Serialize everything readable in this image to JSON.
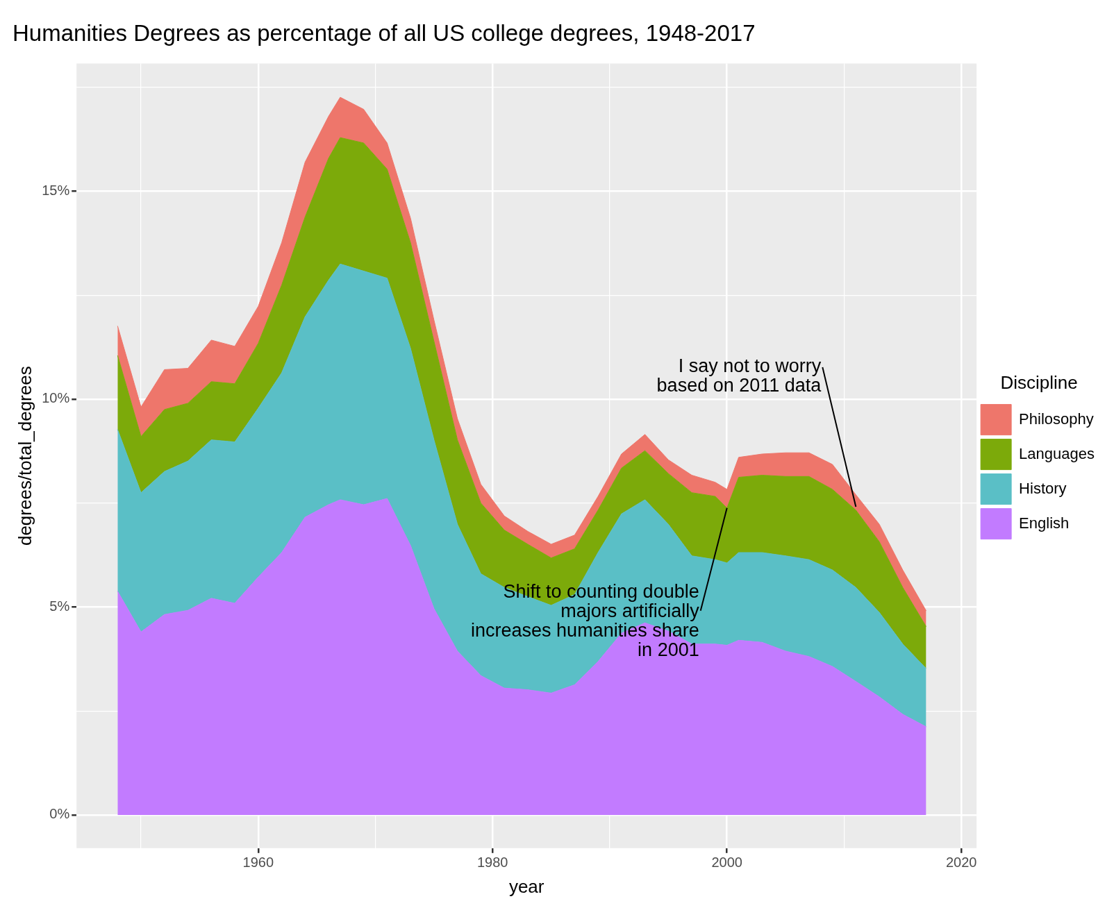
{
  "chart_data": {
    "type": "area",
    "title": "Humanities Degrees as percentage of all US college degrees, 1948-2017",
    "xlabel": "year",
    "ylabel": "degrees/total_degrees",
    "legend_title": "Discipline",
    "stacked": true,
    "grid": true,
    "legend": "right",
    "x": [
      1948,
      1950,
      1952,
      1954,
      1956,
      1958,
      1960,
      1962,
      1964,
      1966,
      1967,
      1969,
      1971,
      1973,
      1975,
      1977,
      1979,
      1981,
      1983,
      1985,
      1987,
      1989,
      1991,
      1993,
      1995,
      1997,
      1999,
      2000,
      2001,
      2003,
      2005,
      2007,
      2009,
      2011,
      2013,
      2015,
      2017
    ],
    "series": [
      {
        "name": "English",
        "color": "#c27bff",
        "values": [
          5.38,
          4.4,
          4.82,
          4.92,
          5.21,
          5.09,
          5.72,
          6.31,
          7.16,
          7.46,
          7.58,
          7.46,
          7.61,
          6.48,
          4.96,
          3.94,
          3.35,
          3.05,
          3.01,
          2.93,
          3.13,
          3.69,
          4.37,
          4.62,
          4.42,
          4.11,
          4.11,
          4.08,
          4.2,
          4.15,
          3.94,
          3.81,
          3.57,
          3.21,
          2.84,
          2.42,
          2.12
        ]
      },
      {
        "name": "History",
        "color": "#5abfc6",
        "values": [
          3.89,
          3.35,
          3.44,
          3.59,
          3.81,
          3.88,
          4.06,
          4.32,
          4.82,
          5.4,
          5.67,
          5.62,
          5.3,
          4.74,
          4.06,
          3.05,
          2.45,
          2.42,
          2.24,
          2.11,
          2.17,
          2.62,
          2.87,
          2.96,
          2.57,
          2.12,
          2.03,
          1.98,
          2.11,
          2.16,
          2.29,
          2.33,
          2.32,
          2.26,
          2.03,
          1.69,
          1.4
        ]
      },
      {
        "name": "Languages",
        "color": "#7caa0a",
        "values": [
          1.78,
          1.35,
          1.49,
          1.39,
          1.4,
          1.4,
          1.56,
          2.11,
          2.4,
          2.93,
          3.04,
          3.08,
          2.62,
          2.54,
          2.37,
          2.03,
          1.7,
          1.38,
          1.26,
          1.14,
          1.1,
          1.02,
          1.1,
          1.18,
          1.22,
          1.52,
          1.52,
          1.32,
          1.81,
          1.86,
          1.91,
          2.0,
          1.94,
          1.86,
          1.7,
          1.36,
          1.01
        ]
      },
      {
        "name": "Philosophy",
        "color": "#ee766b",
        "values": [
          0.71,
          0.71,
          0.96,
          0.84,
          1.0,
          0.9,
          0.89,
          1.02,
          1.32,
          1.01,
          0.97,
          0.81,
          0.63,
          0.59,
          0.51,
          0.51,
          0.45,
          0.34,
          0.31,
          0.33,
          0.33,
          0.33,
          0.34,
          0.39,
          0.33,
          0.42,
          0.34,
          0.45,
          0.48,
          0.51,
          0.57,
          0.57,
          0.6,
          0.37,
          0.42,
          0.42,
          0.38
        ]
      }
    ],
    "xlim": [
      1944.5,
      2021.3
    ],
    "xticks": [
      {
        "value": 1950,
        "label": null
      },
      1960,
      {
        "value": 1970,
        "label": null
      },
      1980,
      {
        "value": 1990,
        "label": null
      },
      2000,
      {
        "value": 2010,
        "label": null
      },
      2020
    ],
    "ylim": [
      -0.8,
      18.07
    ],
    "yticks": [
      {
        "value": 0,
        "label": "0%"
      },
      {
        "value": 2.5,
        "label": null
      },
      {
        "value": 5,
        "label": "5%"
      },
      {
        "value": 7.5,
        "label": null
      },
      {
        "value": 10,
        "label": "10%"
      },
      {
        "value": 12.5,
        "label": null
      },
      {
        "value": 15,
        "label": "15%"
      },
      {
        "value": 17.5,
        "label": null
      }
    ],
    "annotations": [
      {
        "text": "I say not to worry\nbased on 2011 data",
        "x": 2011,
        "y": 7.41
      },
      {
        "text": "Shift to counting double\nmajors artificially\nincreases humanities share\nin 2001",
        "x": 2000,
        "y": 7.38
      }
    ]
  }
}
